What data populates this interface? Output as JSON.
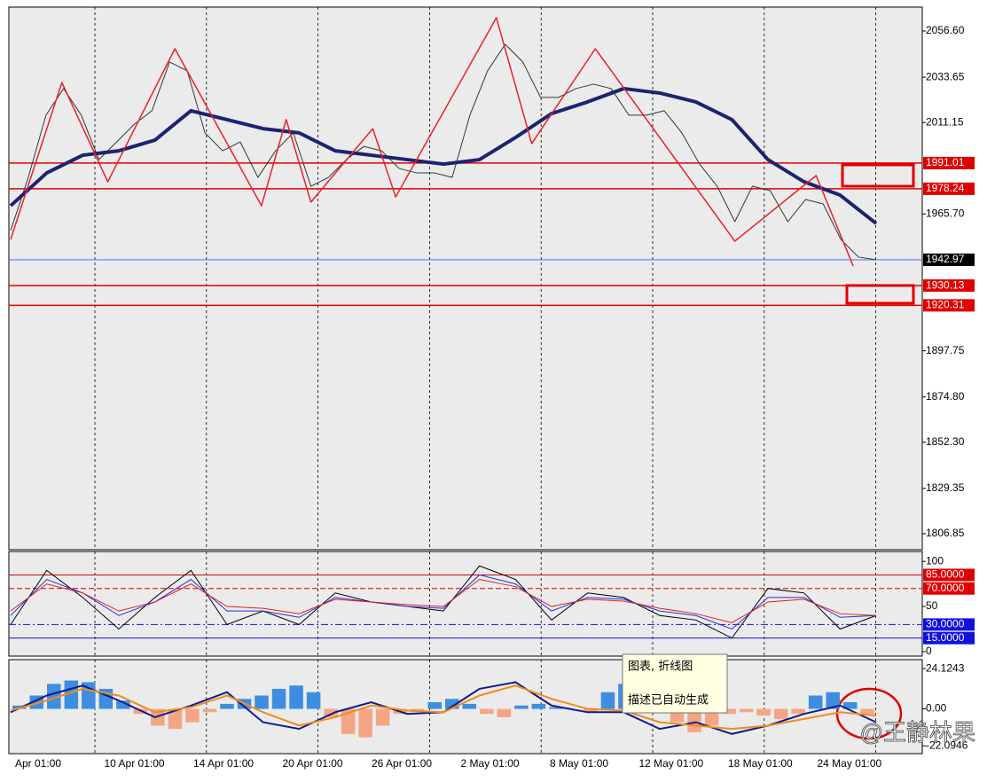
{
  "chart_data": [
    {
      "type": "line",
      "xlim": [
        0,
        49
      ],
      "ylim": [
        1798.9,
        2068.5
      ],
      "yticks": [
        {
          "value": 2056.6,
          "label": "2056.60"
        },
        2033.65,
        2011.15,
        {
          "value": 1965.7,
          "label": "1965.70"
        },
        1897.75,
        {
          "value": 1874.8,
          "label": "1874.80"
        },
        {
          "value": 1852.3,
          "label": "1852.30"
        },
        1829.35,
        1806.85
      ],
      "x_labels": [
        "Apr 01:00",
        "10 Apr 01:00",
        "14 Apr 01:00",
        "20 Apr 01:00",
        "26 Apr 01:00",
        "2 May 01:00",
        "8 May 01:00",
        "12 May 01:00",
        "18 May 01:00",
        "24 May 01:00"
      ],
      "levels": [
        {
          "value": 1991.01,
          "color": "#e00000",
          "label_color": "#e00000"
        },
        {
          "value": 1978.24,
          "color": "#e00000",
          "label_color": "#e00000"
        },
        {
          "value": 1942.97,
          "color": "#4a6cf0",
          "label_color": "#000000"
        },
        {
          "value": 1930.13,
          "color": "#e00000",
          "label_color": "#e00000"
        },
        {
          "value": 1920.31,
          "color": "#e00000",
          "label_color": "#e00000"
        }
      ],
      "series": [
        {
          "color": "#2f3a2f",
          "width": 1,
          "values": [
            1957.5,
            1983.9,
            2014.8,
            2028.0,
            2014.8,
            1992.7,
            2001.5,
            2010.3,
            2017.0,
            2041.2,
            2036.8,
            2006.0,
            1997.1,
            2001.5,
            1983.9,
            1997.1,
            2006.0,
            1979.5,
            1983.9,
            1992.7,
            1999.3,
            1997.1,
            1988.3,
            1986.1,
            1986.1,
            1983.9,
            2014.8,
            2036.8,
            2050.0,
            2041.2,
            2023.6,
            2023.6,
            2028.0,
            2030.2,
            2028.0,
            2014.8,
            2014.8,
            2017.0,
            2006.0,
            1990.5,
            1979.5,
            1961.9,
            1979.5,
            1977.3,
            1961.9,
            1972.9,
            1970.7,
            1953.1,
            1944.3,
            1943.0
          ]
        },
        {
          "color": "#1c2470",
          "width": 4,
          "values": [
            1969.8,
            1986.1,
            1994.9,
            1997.1,
            2002.4,
            2017.0,
            2012.6,
            2008.1,
            2006.0,
            1997.1,
            1994.9,
            1992.7,
            1990.5,
            1992.7,
            2003.7,
            2015.6,
            2021.4,
            2028.0,
            2025.8,
            2021.4,
            2012.6,
            1992.7,
            1981.7,
            1975.1,
            1961.0
          ]
        },
        {
          "color": "#e8202a",
          "width": 1.5,
          "x": [
            0,
            2.9,
            5.5,
            9.3,
            14.2,
            15.6,
            17.0,
            20.5,
            21.8,
            27.5,
            29.5,
            33.1,
            41.0,
            45.6,
            47.7
          ],
          "values": [
            1953.1,
            2031.0,
            1981.7,
            2047.8,
            1969.8,
            2012.6,
            1971.6,
            2008.1,
            1974.2,
            2063.2,
            2000.7,
            2047.8,
            1952.2,
            1984.8,
            1939.9
          ]
        }
      ]
    },
    {
      "type": "oscillator",
      "ylim": [
        -5,
        111
      ],
      "yticks": [
        100,
        50,
        0
      ],
      "levels": [
        {
          "value": 85,
          "label": "85.0000",
          "color": "#e00000",
          "dash": "solid"
        },
        {
          "value": 70,
          "label": "70.0000",
          "color": "#e00000",
          "dash": "dashed"
        },
        {
          "value": 30,
          "label": "30.0000",
          "color": "#1010e0",
          "dash": "dashdot"
        },
        {
          "value": 15,
          "label": "15.0000",
          "color": "#1010e0",
          "dash": "solid"
        }
      ],
      "series": [
        {
          "color": "#000000",
          "values": [
            30,
            90,
            60,
            25,
            60,
            90,
            30,
            45,
            30,
            65,
            55,
            50,
            45,
            95,
            80,
            35,
            65,
            60,
            40,
            35,
            15,
            70,
            65,
            25,
            40
          ]
        },
        {
          "color": "#2030e0",
          "values": [
            40,
            80,
            65,
            40,
            55,
            80,
            45,
            45,
            38,
            60,
            55,
            50,
            48,
            85,
            75,
            45,
            60,
            58,
            45,
            40,
            25,
            60,
            60,
            38,
            40
          ]
        },
        {
          "color": "#e02020",
          "values": [
            45,
            75,
            65,
            45,
            55,
            75,
            50,
            48,
            42,
            58,
            55,
            52,
            50,
            80,
            72,
            50,
            58,
            56,
            48,
            42,
            32,
            55,
            58,
            42,
            40
          ]
        }
      ]
    },
    {
      "type": "macd",
      "ylim": [
        -26.8,
        29.5
      ],
      "yticks": [
        24.1243,
        {
          "value": 0,
          "label": "0.00"
        },
        -22.0946
      ],
      "histogram": {
        "pos_color": "#3d8ee0",
        "neg_color": "#f4a585",
        "values": [
          2,
          8,
          15,
          17,
          16,
          12,
          5,
          -3,
          -10,
          -12,
          -8,
          -2,
          3,
          6,
          8,
          12,
          14,
          10,
          -5,
          -15,
          -17,
          -10,
          -3,
          -2,
          4,
          6,
          3,
          -3,
          -5,
          2,
          3,
          1,
          0,
          -2,
          10,
          15,
          16,
          12,
          -8,
          -14,
          -10,
          -3,
          -2,
          -4,
          -6,
          -3,
          8,
          10,
          4,
          -3
        ]
      },
      "series": [
        {
          "color": "#101c8c",
          "values": [
            -2,
            8,
            14,
            5,
            -5,
            2,
            10,
            -8,
            -12,
            -2,
            4,
            -3,
            -2,
            12,
            16,
            2,
            -2,
            -2,
            -12,
            -8,
            -15,
            -10,
            -3,
            2,
            -8
          ]
        },
        {
          "color": "#f08c1c",
          "values": [
            -1,
            5,
            12,
            8,
            -2,
            1,
            8,
            -2,
            -10,
            -5,
            2,
            -1,
            -2,
            8,
            14,
            6,
            0,
            -1,
            -8,
            -10,
            -12,
            -10,
            -6,
            -2,
            -4
          ]
        }
      ]
    }
  ],
  "tooltip": {
    "title": "图表, 折线图",
    "text": "描述已自动生成"
  },
  "watermark": "@王静林果"
}
